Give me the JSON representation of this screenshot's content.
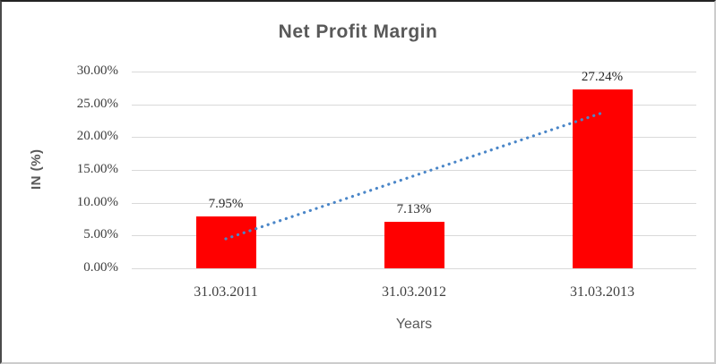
{
  "chart_data": {
    "type": "bar",
    "title": "Net Profit Margin",
    "xlabel": "Years",
    "ylabel": "IN (%)",
    "categories": [
      "31.03.2011",
      "31.03.2012",
      "31.03.2013"
    ],
    "values": [
      7.95,
      7.13,
      27.24
    ],
    "data_labels": [
      "7.95%",
      "7.13%",
      "27.24%"
    ],
    "ylim": [
      0,
      30
    ],
    "ytick_step": 5,
    "yticks": [
      "0.00%",
      "5.00%",
      "10.00%",
      "15.00%",
      "20.00%",
      "25.00%",
      "30.00%"
    ],
    "grid": true,
    "legend_position": "none",
    "trendline": {
      "style": "dotted",
      "start_value": 4.5,
      "end_value": 23.7,
      "color": "#4a86c8"
    },
    "colors": {
      "bar": "#ff0000",
      "grid": "#d9d9d9",
      "tick_text": "#3f3f3f",
      "data_label_text": "#262626",
      "title_text": "#595959",
      "axis_title_text": "#595959"
    }
  }
}
